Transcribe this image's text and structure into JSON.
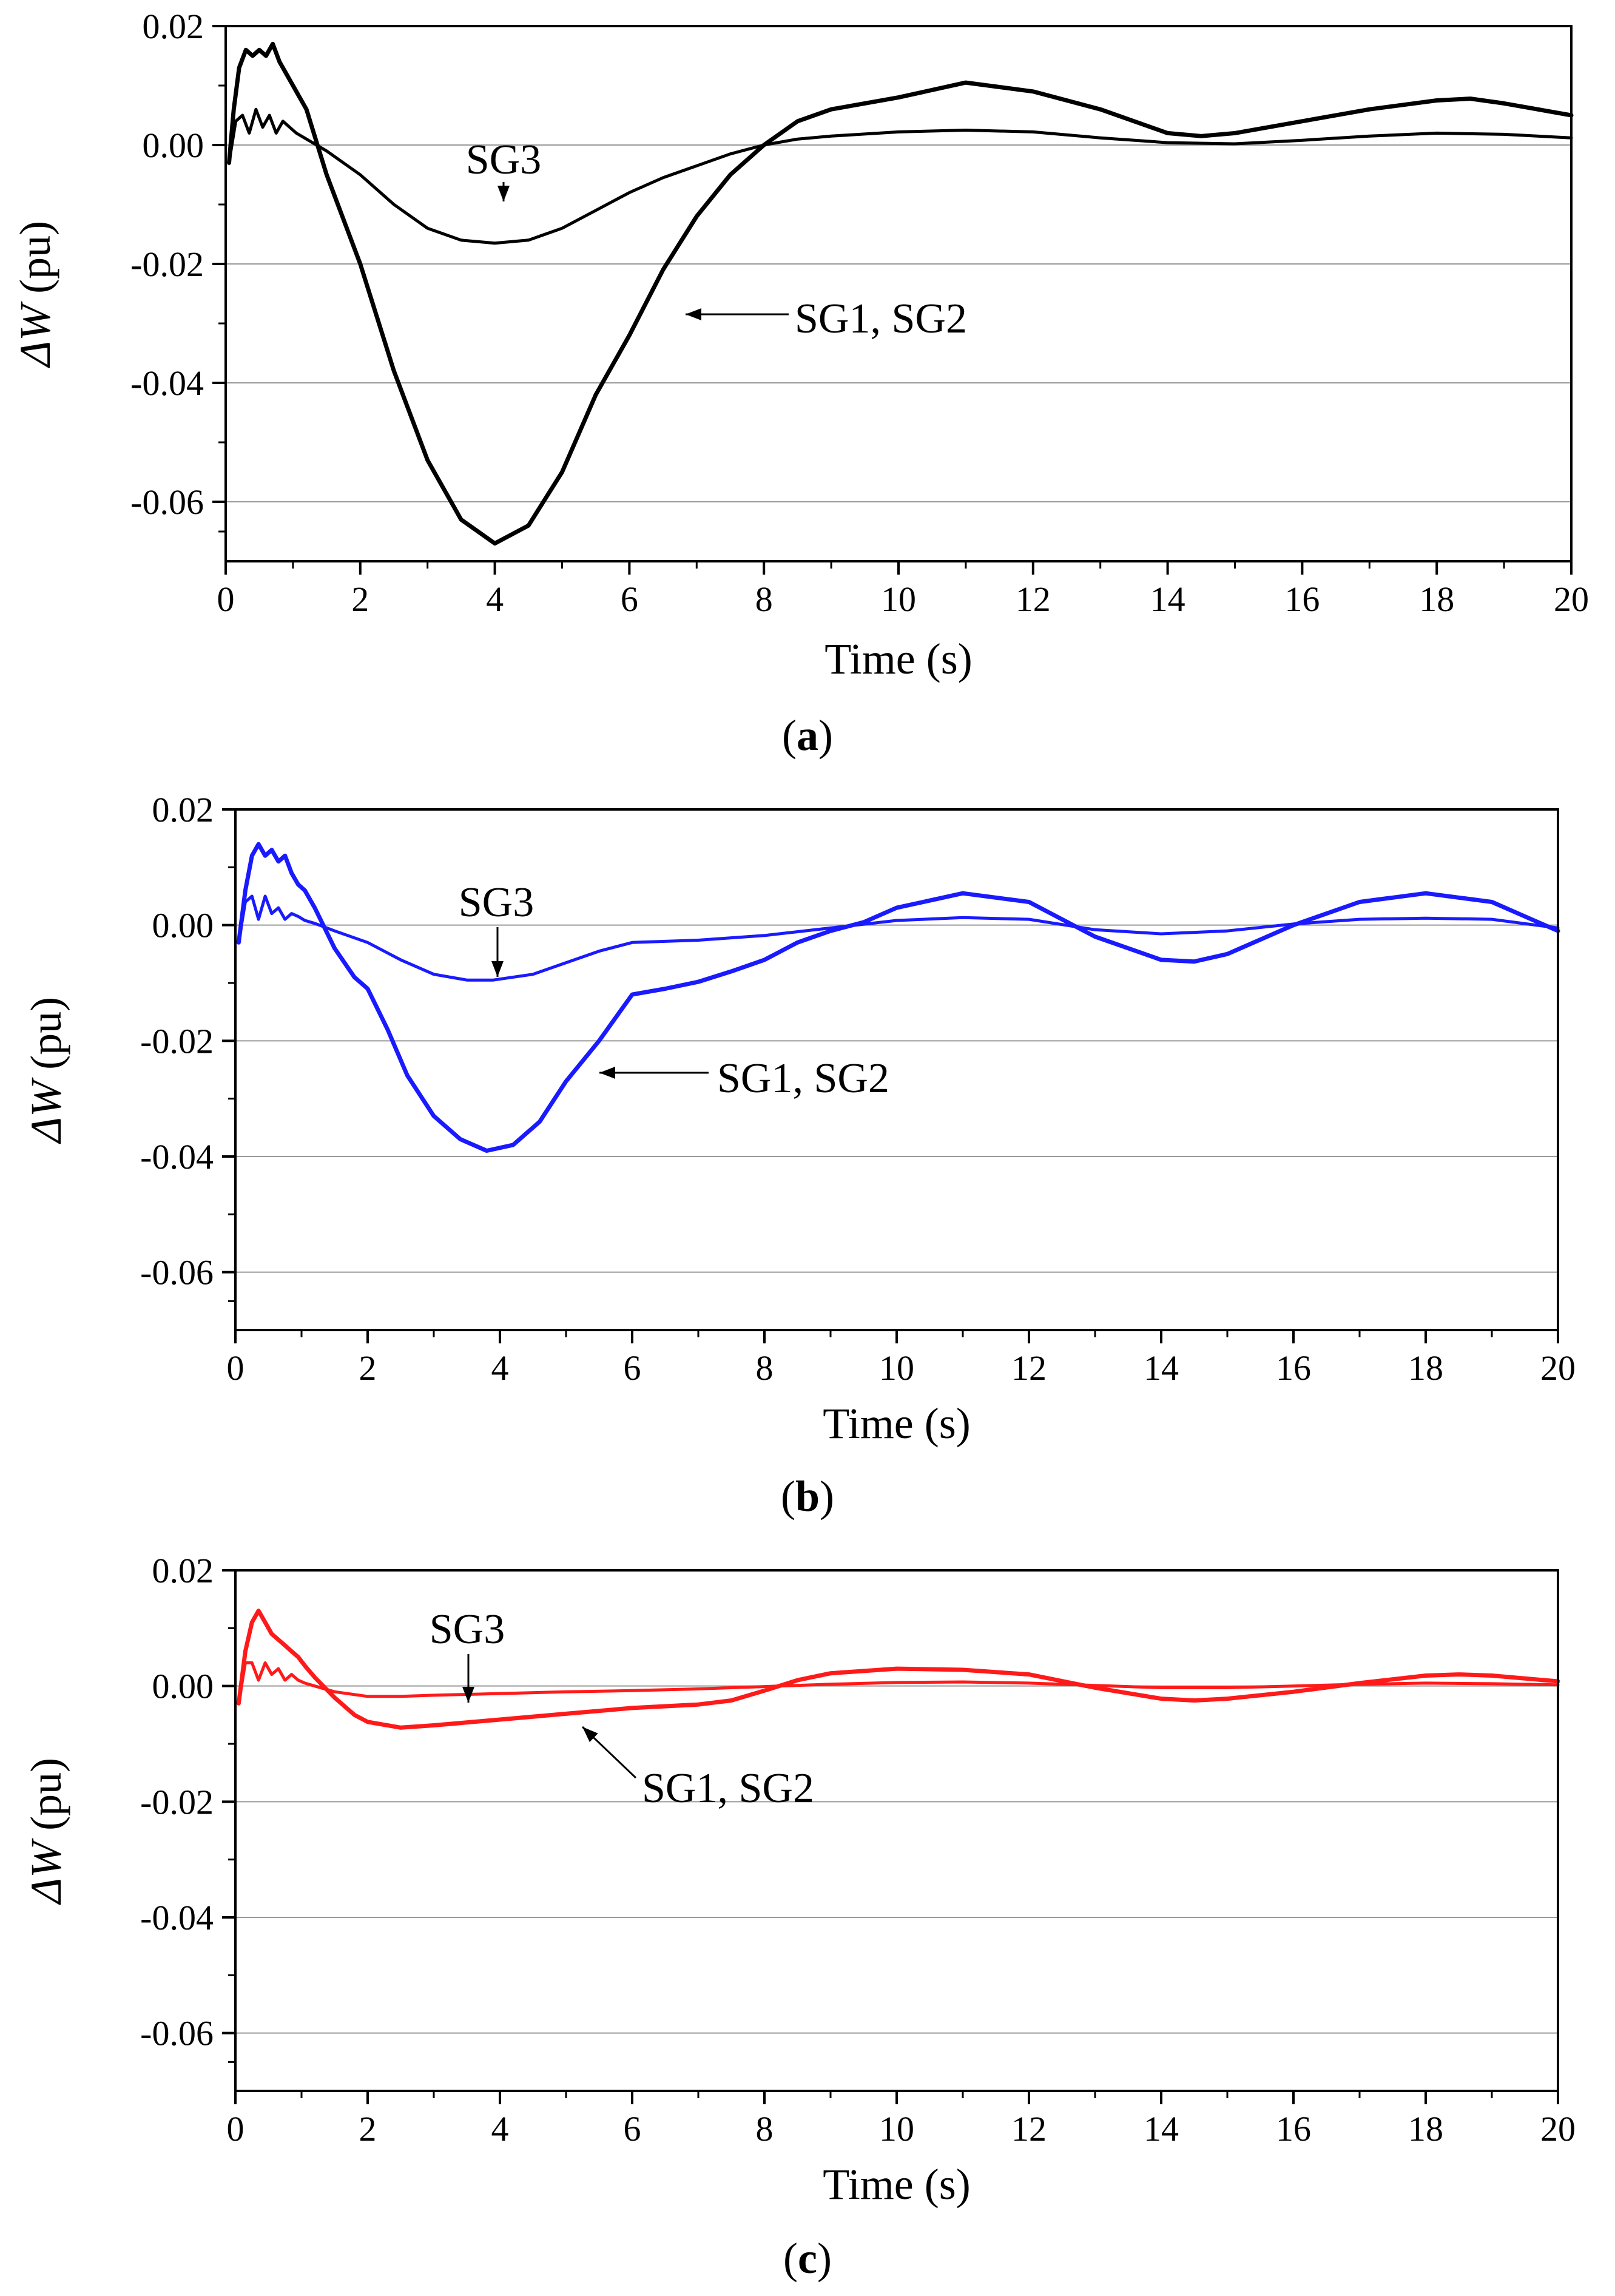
{
  "figure": {
    "captions": [
      "(a)",
      "(b)",
      "(c)"
    ]
  },
  "chart_data": [
    {
      "panel": "a",
      "caption_letter": "a",
      "type": "line",
      "xlabel": "Time (s)",
      "ylabel_symbol": "ΔW",
      "ylabel_unit": " (pu)",
      "xlim": [
        0,
        20
      ],
      "ylim": [
        -0.07,
        0.02
      ],
      "xticks": [
        0,
        2,
        4,
        6,
        8,
        10,
        12,
        14,
        16,
        18,
        20
      ],
      "xtick_labels": [
        "0",
        "2",
        "4",
        "6",
        "8",
        "10",
        "12",
        "14",
        "16",
        "18",
        "20"
      ],
      "yticks": [
        0.02,
        0.0,
        -0.02,
        -0.04,
        -0.06
      ],
      "ytick_labels": [
        "0.02",
        "0.00",
        "-0.02",
        "-0.04",
        "-0.06"
      ],
      "gridlines_y": [
        0.0,
        -0.02,
        -0.04,
        -0.06
      ],
      "color": "#000000",
      "series": [
        {
          "name": "SG1, SG2",
          "x": [
            0.05,
            0.12,
            0.2,
            0.3,
            0.4,
            0.5,
            0.6,
            0.7,
            0.8,
            0.9,
            1.0,
            1.2,
            1.5,
            2.0,
            2.5,
            3.0,
            3.5,
            4.0,
            4.5,
            5.0,
            5.5,
            6.0,
            6.5,
            7.0,
            7.5,
            8.0,
            8.5,
            9.0,
            10.0,
            11.0,
            12.0,
            13.0,
            14.0,
            14.5,
            15.0,
            16.0,
            17.0,
            18.0,
            18.5,
            19.0,
            20.0
          ],
          "y": [
            -0.003,
            0.006,
            0.013,
            0.016,
            0.015,
            0.016,
            0.015,
            0.017,
            0.014,
            0.012,
            0.01,
            0.006,
            -0.005,
            -0.02,
            -0.038,
            -0.053,
            -0.063,
            -0.067,
            -0.064,
            -0.055,
            -0.042,
            -0.032,
            -0.021,
            -0.012,
            -0.005,
            0.0,
            0.004,
            0.006,
            0.008,
            0.0105,
            0.009,
            0.006,
            0.002,
            0.0015,
            0.002,
            0.004,
            0.006,
            0.0075,
            0.0078,
            0.007,
            0.005
          ],
          "stroke_width": 7
        },
        {
          "name": "SG3",
          "x": [
            0.05,
            0.15,
            0.25,
            0.35,
            0.45,
            0.55,
            0.65,
            0.75,
            0.85,
            0.95,
            1.05,
            1.2,
            1.5,
            2.0,
            2.5,
            3.0,
            3.5,
            4.0,
            4.5,
            5.0,
            5.5,
            6.0,
            6.5,
            7.0,
            7.5,
            8.0,
            8.5,
            9.0,
            10.0,
            11.0,
            12.0,
            13.0,
            14.0,
            15.0,
            16.0,
            17.0,
            18.0,
            19.0,
            20.0
          ],
          "y": [
            -0.003,
            0.004,
            0.005,
            0.002,
            0.006,
            0.003,
            0.005,
            0.002,
            0.004,
            0.003,
            0.002,
            0.001,
            -0.001,
            -0.005,
            -0.01,
            -0.014,
            -0.016,
            -0.0165,
            -0.016,
            -0.014,
            -0.011,
            -0.008,
            -0.0055,
            -0.0035,
            -0.0015,
            0.0,
            0.001,
            0.0015,
            0.0022,
            0.0025,
            0.0022,
            0.0012,
            0.0004,
            0.0002,
            0.0008,
            0.0015,
            0.002,
            0.0018,
            0.0012
          ],
          "stroke_width": 5
        }
      ],
      "annotations": [
        {
          "text": "SG3",
          "arrow_to": {
            "x": 4.2,
            "y": -0.0165
          }
        },
        {
          "text": "SG1, SG2",
          "arrow_to": {
            "x": 6.85,
            "y": -0.027
          }
        }
      ]
    },
    {
      "panel": "b",
      "caption_letter": "b",
      "type": "line",
      "xlabel": "Time (s)",
      "ylabel_symbol": "ΔW",
      "ylabel_unit": " (pu)",
      "xlim": [
        0,
        20
      ],
      "ylim": [
        -0.07,
        0.02
      ],
      "xticks": [
        0,
        2,
        4,
        6,
        8,
        10,
        12,
        14,
        16,
        18,
        20
      ],
      "xtick_labels": [
        "0",
        "2",
        "4",
        "6",
        "8",
        "10",
        "12",
        "14",
        "16",
        "18",
        "20"
      ],
      "yticks": [
        0.02,
        0.0,
        -0.02,
        -0.04,
        -0.06
      ],
      "ytick_labels": [
        "0.02",
        "0.00",
        "-0.02",
        "-0.04",
        "-0.06"
      ],
      "gridlines_y": [
        0.0,
        -0.02,
        -0.04,
        -0.06
      ],
      "color": "#1a1aff",
      "series": [
        {
          "name": "SG1, SG2",
          "x": [
            0.05,
            0.15,
            0.25,
            0.35,
            0.45,
            0.55,
            0.65,
            0.75,
            0.85,
            0.95,
            1.05,
            1.2,
            1.5,
            1.8,
            2.0,
            2.3,
            2.6,
            3.0,
            3.4,
            3.8,
            4.2,
            4.6,
            5.0,
            5.5,
            6.0,
            6.5,
            7.0,
            7.5,
            8.0,
            8.5,
            9.0,
            9.5,
            10.0,
            11.0,
            12.0,
            13.0,
            14.0,
            14.5,
            15.0,
            16.0,
            17.0,
            18.0,
            19.0,
            20.0
          ],
          "y": [
            -0.003,
            0.006,
            0.012,
            0.014,
            0.012,
            0.013,
            0.011,
            0.012,
            0.009,
            0.007,
            0.006,
            0.003,
            -0.004,
            -0.009,
            -0.011,
            -0.018,
            -0.026,
            -0.033,
            -0.037,
            -0.039,
            -0.038,
            -0.034,
            -0.027,
            -0.02,
            -0.012,
            -0.011,
            -0.0098,
            -0.008,
            -0.006,
            -0.003,
            -0.001,
            0.0005,
            0.003,
            0.0055,
            0.004,
            -0.002,
            -0.006,
            -0.0063,
            -0.005,
            0.0,
            0.004,
            0.0055,
            0.004,
            -0.001
          ],
          "stroke_width": 7
        },
        {
          "name": "SG3",
          "x": [
            0.05,
            0.15,
            0.25,
            0.35,
            0.45,
            0.55,
            0.65,
            0.75,
            0.85,
            0.95,
            1.05,
            1.2,
            1.5,
            2.0,
            2.5,
            3.0,
            3.5,
            3.9,
            4.5,
            5.0,
            5.5,
            6.0,
            6.5,
            7.0,
            8.0,
            9.0,
            10.0,
            11.0,
            12.0,
            13.0,
            14.0,
            15.0,
            16.0,
            17.0,
            18.0,
            19.0,
            20.0
          ],
          "y": [
            -0.003,
            0.004,
            0.005,
            0.001,
            0.005,
            0.002,
            0.003,
            0.001,
            0.002,
            0.0015,
            0.0008,
            0.0003,
            -0.001,
            -0.003,
            -0.006,
            -0.0085,
            -0.0095,
            -0.0095,
            -0.0085,
            -0.0065,
            -0.0045,
            -0.003,
            -0.0028,
            -0.0026,
            -0.0018,
            -0.0005,
            0.0008,
            0.0013,
            0.001,
            -0.0008,
            -0.0015,
            -0.001,
            0.0002,
            0.001,
            0.0012,
            0.001,
            -0.0005
          ],
          "stroke_width": 5
        }
      ],
      "annotations": [
        {
          "text": "SG3",
          "arrow_to": {
            "x": 3.95,
            "y": -0.0095
          }
        },
        {
          "text": "SG1, SG2",
          "arrow_to": {
            "x": 5.5,
            "y": -0.02
          }
        }
      ]
    },
    {
      "panel": "c",
      "caption_letter": "c",
      "type": "line",
      "xlabel": "Time (s)",
      "ylabel_symbol": "ΔW",
      "ylabel_unit": " (pu)",
      "xlim": [
        0,
        20
      ],
      "ylim": [
        -0.07,
        0.02
      ],
      "xticks": [
        0,
        2,
        4,
        6,
        8,
        10,
        12,
        14,
        16,
        18,
        20
      ],
      "xtick_labels": [
        "0",
        "2",
        "4",
        "6",
        "8",
        "10",
        "12",
        "14",
        "16",
        "18",
        "20"
      ],
      "yticks": [
        0.02,
        0.0,
        -0.02,
        -0.04,
        -0.06
      ],
      "ytick_labels": [
        "0.02",
        "0.00",
        "-0.02",
        "-0.04",
        "-0.06"
      ],
      "gridlines_y": [
        0.0,
        -0.02,
        -0.04,
        -0.06
      ],
      "color": "#ff1a1a",
      "series": [
        {
          "name": "SG1, SG2",
          "x": [
            0.05,
            0.15,
            0.25,
            0.35,
            0.45,
            0.55,
            0.65,
            0.75,
            0.85,
            0.95,
            1.05,
            1.2,
            1.5,
            1.8,
            2.0,
            2.5,
            3.0,
            4.0,
            5.0,
            6.0,
            7.0,
            7.5,
            8.0,
            8.5,
            9.0,
            10.0,
            11.0,
            12.0,
            13.0,
            14.0,
            14.5,
            15.0,
            16.0,
            17.0,
            18.0,
            18.5,
            19.0,
            20.0
          ],
          "y": [
            -0.003,
            0.006,
            0.011,
            0.013,
            0.011,
            0.009,
            0.008,
            0.007,
            0.006,
            0.005,
            0.0035,
            0.0015,
            -0.002,
            -0.005,
            -0.0062,
            -0.0072,
            -0.0068,
            -0.0058,
            -0.0048,
            -0.0038,
            -0.0032,
            -0.0025,
            -0.0008,
            0.001,
            0.0022,
            0.003,
            0.0028,
            0.002,
            -0.0003,
            -0.0022,
            -0.0025,
            -0.0022,
            -0.001,
            0.0005,
            0.0018,
            0.002,
            0.0018,
            0.0008
          ],
          "stroke_width": 7
        },
        {
          "name": "SG3",
          "x": [
            0.05,
            0.15,
            0.25,
            0.35,
            0.45,
            0.55,
            0.65,
            0.75,
            0.85,
            0.95,
            1.05,
            1.2,
            1.5,
            2.0,
            2.5,
            3.0,
            4.0,
            5.0,
            6.0,
            7.0,
            8.0,
            9.0,
            10.0,
            11.0,
            12.0,
            13.0,
            14.0,
            15.0,
            16.0,
            17.0,
            18.0,
            19.0,
            20.0
          ],
          "y": [
            -0.003,
            0.004,
            0.004,
            0.001,
            0.004,
            0.002,
            0.003,
            0.001,
            0.002,
            0.001,
            0.0005,
            0.0,
            -0.001,
            -0.0018,
            -0.0018,
            -0.0016,
            -0.0013,
            -0.001,
            -0.0008,
            -0.0005,
            -0.0001,
            0.0003,
            0.0006,
            0.0007,
            0.0005,
            0.0001,
            -0.0003,
            -0.0003,
            0.0,
            0.0003,
            0.0005,
            0.0004,
            0.0002
          ],
          "stroke_width": 5
        }
      ],
      "annotations": [
        {
          "text": "SG3",
          "arrow_to": {
            "x": 3.5,
            "y": -0.0015
          }
        },
        {
          "text": "SG1, SG2",
          "arrow_to": {
            "x": 5.4,
            "y": -0.0058
          }
        }
      ]
    }
  ]
}
